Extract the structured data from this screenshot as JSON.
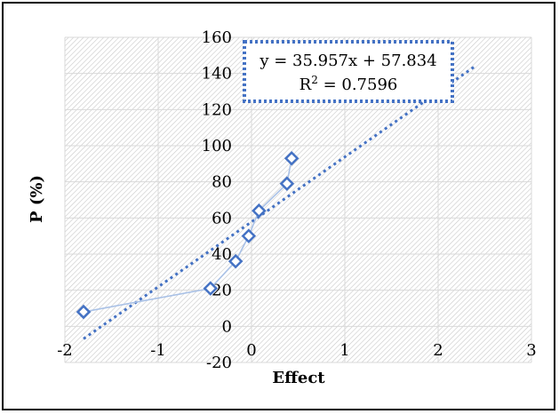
{
  "chart_data": {
    "type": "scatter",
    "title": "",
    "xlabel": "Effect",
    "ylabel": "P (%)",
    "xlim": [
      -2,
      3
    ],
    "ylim": [
      -20,
      160
    ],
    "x_ticks": [
      -2,
      -1,
      0,
      1,
      2,
      3
    ],
    "y_ticks": [
      -20,
      0,
      20,
      40,
      60,
      80,
      100,
      120,
      140,
      160
    ],
    "grid": true,
    "series": [
      {
        "points": [
          {
            "x": -1.8,
            "y": 8
          },
          {
            "x": -0.44,
            "y": 21
          },
          {
            "x": -0.17,
            "y": 36
          },
          {
            "x": -0.03,
            "y": 50
          },
          {
            "x": 0.08,
            "y": 64
          },
          {
            "x": 0.38,
            "y": 79
          },
          {
            "x": 0.43,
            "y": 93
          }
        ],
        "color": "#4472c4",
        "line_color": "#a9c1e6",
        "marker": "diamond"
      }
    ],
    "trendline": {
      "type": "linear",
      "slope": 35.957,
      "intercept": 57.834,
      "x_range": [
        -1.8,
        2.4
      ],
      "color": "#4472c4",
      "equation_label": "y = 35.957x + 57.834",
      "r2_label_prefix": "R",
      "r2_label_sup": "2",
      "r2_label_value": " = 0.7596"
    }
  }
}
